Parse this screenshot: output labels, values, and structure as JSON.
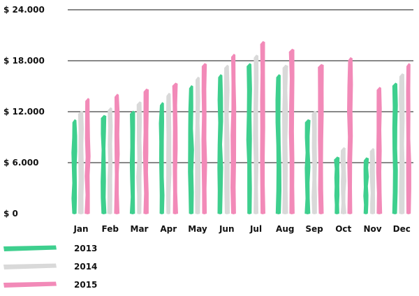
{
  "chart_data": {
    "type": "bar",
    "title": "",
    "xlabel": "",
    "ylabel": "",
    "ylim": [
      0,
      24000
    ],
    "yticks": [
      0,
      6000,
      12000,
      18000,
      24000
    ],
    "ytick_labels": [
      "$ 0",
      "$ 6.000",
      "$ 12.000",
      "$ 18.000",
      "$ 24.000"
    ],
    "grid": true,
    "legend_placement": "bottom-left",
    "categories": [
      "Jan",
      "Feb",
      "Mar",
      "Apr",
      "May",
      "Jun",
      "Jul",
      "Aug",
      "Sep",
      "Oct",
      "Nov",
      "Dec"
    ],
    "series": [
      {
        "name": "2013",
        "color": "#3ecf8e",
        "values": [
          11000,
          11500,
          12000,
          13000,
          15000,
          16300,
          17600,
          16300,
          11000,
          6600,
          6500,
          15300
        ]
      },
      {
        "name": "2014",
        "color": "#d9d9d9",
        "values": [
          12000,
          12400,
          13100,
          14100,
          16000,
          17400,
          18600,
          17400,
          12000,
          7700,
          7600,
          16400
        ]
      },
      {
        "name": "2015",
        "color": "#f28ab8",
        "values": [
          13500,
          14000,
          14600,
          15300,
          17600,
          18700,
          20200,
          19300,
          17500,
          18300,
          14800,
          17600
        ]
      }
    ]
  }
}
